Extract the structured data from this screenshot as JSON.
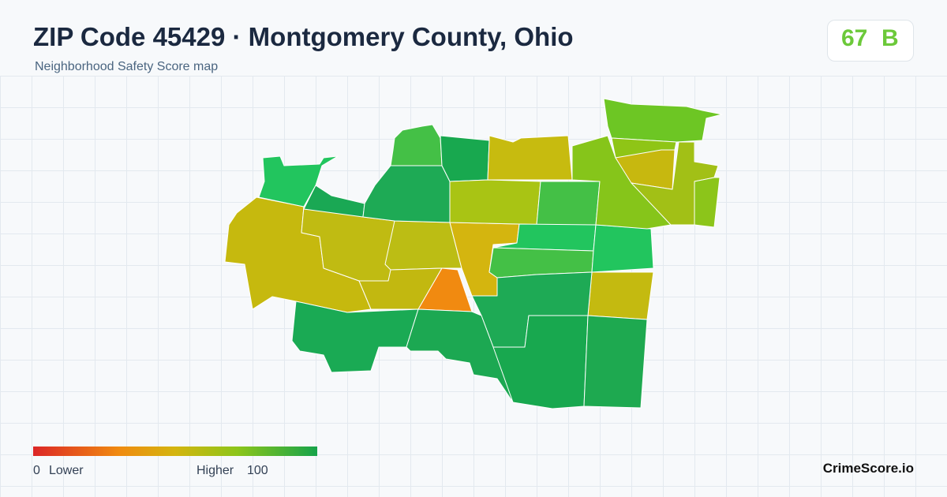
{
  "header": {
    "title": "ZIP Code 45429 · Montgomery County, Ohio",
    "subtitle": "Neighborhood Safety Score map"
  },
  "score": {
    "value": 67,
    "grade": "B"
  },
  "legend": {
    "min": 0,
    "min_label": "Lower",
    "max_label": "Higher",
    "max": 100
  },
  "brand": "CrimeScore.io"
}
